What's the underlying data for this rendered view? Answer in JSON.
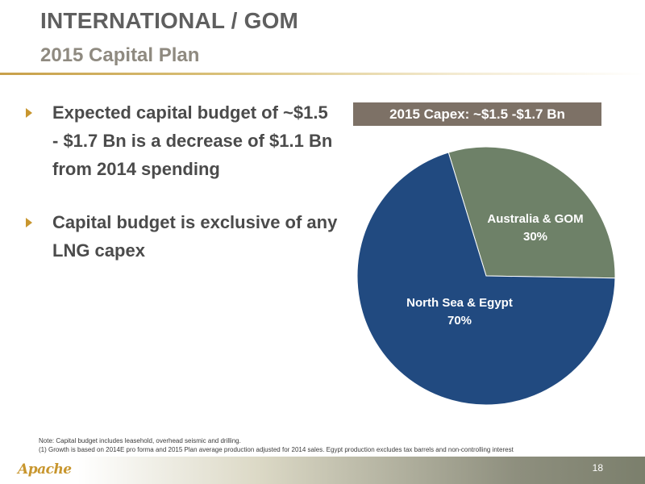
{
  "header": {
    "title": "INTERNATIONAL / GOM",
    "subtitle": "2015 Capital Plan"
  },
  "bullets": [
    {
      "text": "Expected capital budget of ~$1.5 - $1.7 Bn is a decrease of $1.1 Bn from 2014 spending"
    },
    {
      "text": "Capital budget is exclusive of any LNG capex"
    }
  ],
  "capex_label": "2015 Capex: ~$1.5 -$1.7 Bn",
  "chart_data": {
    "type": "pie",
    "slices": [
      {
        "label": "Australia & GOM",
        "value": 30,
        "value_label": "30%",
        "color": "#6e8168"
      },
      {
        "label": "North Sea & Egypt",
        "value": 70,
        "value_label": "70%",
        "color": "#214a80"
      }
    ],
    "start_angle_deg": -17,
    "title": "2015 Capex: ~$1.5 -$1.7 Bn",
    "legend": "none"
  },
  "note_lines": [
    "Note: Capital budget includes leasehold, overhead seismic and drilling.",
    "(1) Growth is based on 2014E pro forma and 2015 Plan average production adjusted for 2014 sales.  Egypt production excludes tax barrels and non-controlling interest"
  ],
  "footer": {
    "logo_text": "Apache",
    "page_number": "18"
  },
  "colors": {
    "title": "#5f5f5f",
    "subtitle": "#8f8a80",
    "accent_gold": "#c8962e",
    "capex_box": "#7d7166"
  }
}
